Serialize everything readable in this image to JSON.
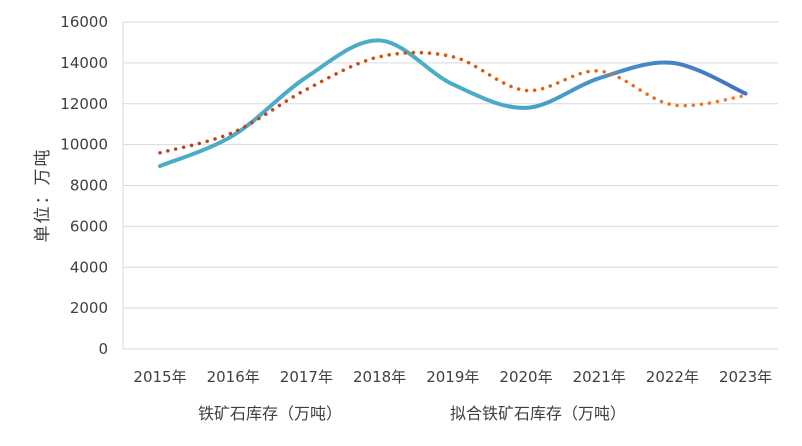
{
  "chart_data": {
    "type": "line",
    "title": "",
    "xlabel": "",
    "ylabel": "单位：万吨",
    "categories": [
      "2015年",
      "2016年",
      "2017年",
      "2018年",
      "2019年",
      "2020年",
      "2021年",
      "2022年",
      "2023年"
    ],
    "ylim": [
      0,
      16000
    ],
    "yticks": [
      0,
      2000,
      4000,
      6000,
      8000,
      10000,
      12000,
      14000,
      16000
    ],
    "grid": true,
    "legend_position": "bottom",
    "series": [
      {
        "name": "铁矿石库存（万吨）",
        "values": [
          8950,
          10450,
          13300,
          15100,
          12950,
          11800,
          13250,
          14000,
          12500
        ],
        "style": "solid",
        "colors": [
          "#4bacc6",
          "#4472c4"
        ]
      },
      {
        "name": "拟合铁矿石库存（万吨）",
        "values": [
          9600,
          10600,
          12700,
          14300,
          14300,
          12650,
          13600,
          11950,
          12400
        ],
        "style": "dotted",
        "colors": [
          "#c0392b",
          "#ed7d31"
        ]
      }
    ]
  }
}
